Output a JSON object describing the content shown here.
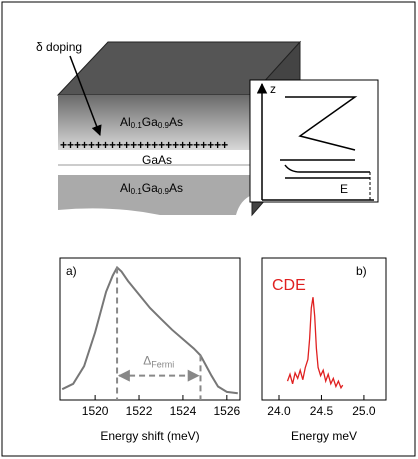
{
  "diagram": {
    "doping_label": "δ doping",
    "top_layer": [
      "Al",
      "0.1",
      "Ga",
      "0.9",
      "As"
    ],
    "well_layer": "GaAs",
    "bottom_layer": [
      "Al",
      "0.1",
      "Ga",
      "0.9",
      "As"
    ],
    "doping_marks": "++++++++++++++++++++++++",
    "z_axis": "z",
    "e_axis": "E"
  },
  "chart_data": [
    {
      "type": "line",
      "panel_label": "a)",
      "xlabel": "Energy shift (meV)",
      "color": "#777777",
      "x": [
        1518.5,
        1519,
        1519.5,
        1520,
        1520.5,
        1520.8,
        1521,
        1521.2,
        1521.5,
        1522,
        1522.5,
        1523,
        1523.5,
        1524,
        1524.5,
        1524.8,
        1525,
        1525.3,
        1525.6,
        1526,
        1526.5
      ],
      "values": [
        0.08,
        0.12,
        0.25,
        0.5,
        0.8,
        0.92,
        0.98,
        0.95,
        0.88,
        0.78,
        0.68,
        0.6,
        0.52,
        0.45,
        0.38,
        0.33,
        0.27,
        0.18,
        0.1,
        0.06,
        0.05
      ],
      "xlim": [
        1518.4,
        1526.6
      ],
      "ylim": [
        0,
        1.05
      ],
      "xticks": [
        1520,
        1522,
        1524,
        1526
      ],
      "fermi_edges": [
        1521,
        1524.8
      ],
      "annotation": [
        "Δ",
        "Fermi"
      ]
    },
    {
      "type": "line",
      "panel_label": "b)",
      "xlabel": "Energy meV",
      "color": "#e02020",
      "x": [
        24.1,
        24.13,
        24.16,
        24.19,
        24.22,
        24.25,
        24.28,
        24.31,
        24.34,
        24.36,
        24.38,
        24.4,
        24.42,
        24.44,
        24.46,
        24.49,
        24.52,
        24.55,
        24.58,
        24.61,
        24.64,
        24.67,
        24.7,
        24.73,
        24.75
      ],
      "values": [
        0.14,
        0.19,
        0.12,
        0.2,
        0.16,
        0.22,
        0.15,
        0.24,
        0.3,
        0.45,
        0.68,
        0.76,
        0.62,
        0.38,
        0.24,
        0.18,
        0.22,
        0.14,
        0.19,
        0.12,
        0.16,
        0.1,
        0.14,
        0.09,
        0.11
      ],
      "xlim": [
        23.8,
        25.26
      ],
      "ylim": [
        0,
        1.05
      ],
      "xticks": [
        {
          "value": 24,
          "label": "24.0"
        },
        24.5,
        {
          "value": 25,
          "label": "25.0"
        }
      ],
      "annotation": "CDE"
    }
  ]
}
